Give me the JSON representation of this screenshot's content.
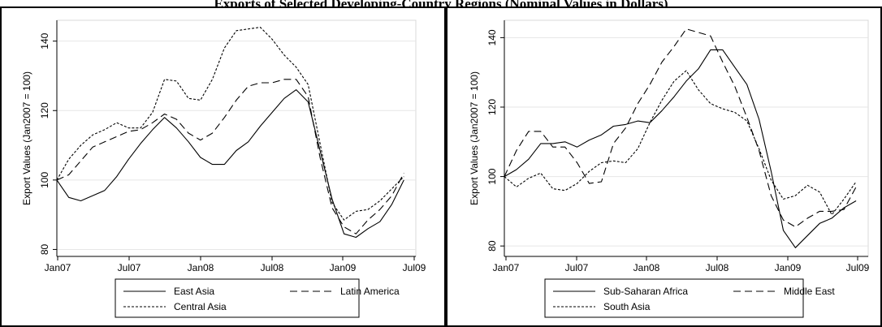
{
  "page_title": "Exports of Selected Developing-Country Regions (Nominal Values in Dollars)",
  "chart_data": [
    {
      "type": "line",
      "ylabel": "Export Values (Jan2007 = 100)",
      "xlabel": "",
      "ylim": [
        78,
        146
      ],
      "yticks": [
        80,
        100,
        120,
        140
      ],
      "xlim": [
        0,
        30
      ],
      "xtick_labels": [
        "Jan07",
        "Jul07",
        "Jan08",
        "Jul08",
        "Jan09",
        "Jul09"
      ],
      "grid": true,
      "legend_position": "bottom",
      "series": [
        {
          "name": "East Asia",
          "dash": "solid",
          "values": [
            100,
            95,
            94,
            95.5,
            97,
            101,
            106,
            110.5,
            114.5,
            118,
            115,
            111,
            106.5,
            104.5,
            104.5,
            108.5,
            111,
            115.5,
            119.5,
            123.5,
            126,
            122.5,
            108.5,
            94.5,
            84.5,
            83.5,
            86,
            88,
            93,
            100
          ]
        },
        {
          "name": "Latin America",
          "dash": "long",
          "values": [
            100,
            101.5,
            105.5,
            109.5,
            111,
            112.5,
            114,
            114.5,
            116.5,
            119,
            117.5,
            113.5,
            111.5,
            113.5,
            118,
            123,
            127,
            128,
            128,
            129,
            129,
            124,
            106.5,
            92,
            86.5,
            84.5,
            88.5,
            91.5,
            95.5,
            102
          ]
        },
        {
          "name": "Central Asia",
          "dash": "short",
          "values": [
            100,
            106,
            110,
            113,
            114.5,
            116.5,
            115,
            115,
            119.5,
            129,
            128.5,
            123.5,
            123,
            129,
            138,
            143,
            143.5,
            144,
            140.5,
            136,
            132.5,
            127.5,
            110.5,
            93.5,
            88.5,
            91,
            91.5,
            94,
            97.5,
            101
          ]
        }
      ]
    },
    {
      "type": "line",
      "ylabel": "Export Values (Jan2007 = 100)",
      "xlabel": "",
      "ylim": [
        77,
        145
      ],
      "yticks": [
        80,
        100,
        120,
        140
      ],
      "xlim": [
        0,
        30
      ],
      "xtick_labels": [
        "Jan07",
        "Jul07",
        "Jan08",
        "Jul08",
        "Jan09",
        "Jul09"
      ],
      "grid": true,
      "legend_position": "bottom",
      "series": [
        {
          "name": "Sub-Saharan Africa",
          "dash": "solid",
          "values": [
            100,
            102,
            105,
            109.5,
            109.5,
            110,
            108.5,
            110.5,
            112,
            114.5,
            115,
            116,
            115.5,
            119,
            123,
            127.5,
            131,
            136.5,
            136.5,
            131.5,
            126.5,
            116.5,
            101.5,
            84.5,
            79.5,
            83,
            86.5,
            88,
            91,
            93
          ]
        },
        {
          "name": "Middle East",
          "dash": "long",
          "values": [
            100,
            107.5,
            113,
            113,
            108.5,
            108.5,
            104,
            98,
            98.5,
            109.5,
            114,
            121,
            126.5,
            133,
            137.5,
            142.5,
            141.5,
            140.5,
            133,
            126,
            117,
            107.5,
            94.5,
            87.5,
            85.5,
            88,
            90,
            90,
            90.5,
            97
          ]
        },
        {
          "name": "South Asia",
          "dash": "short",
          "values": [
            100,
            97,
            99.5,
            101,
            96.5,
            96,
            98,
            101.5,
            104,
            104.5,
            104,
            108,
            115.5,
            122,
            127.5,
            130.5,
            125,
            121,
            119.5,
            118.5,
            116,
            108,
            99,
            93.5,
            94.5,
            97.5,
            95.5,
            89,
            93.5,
            98.5
          ]
        }
      ]
    }
  ]
}
